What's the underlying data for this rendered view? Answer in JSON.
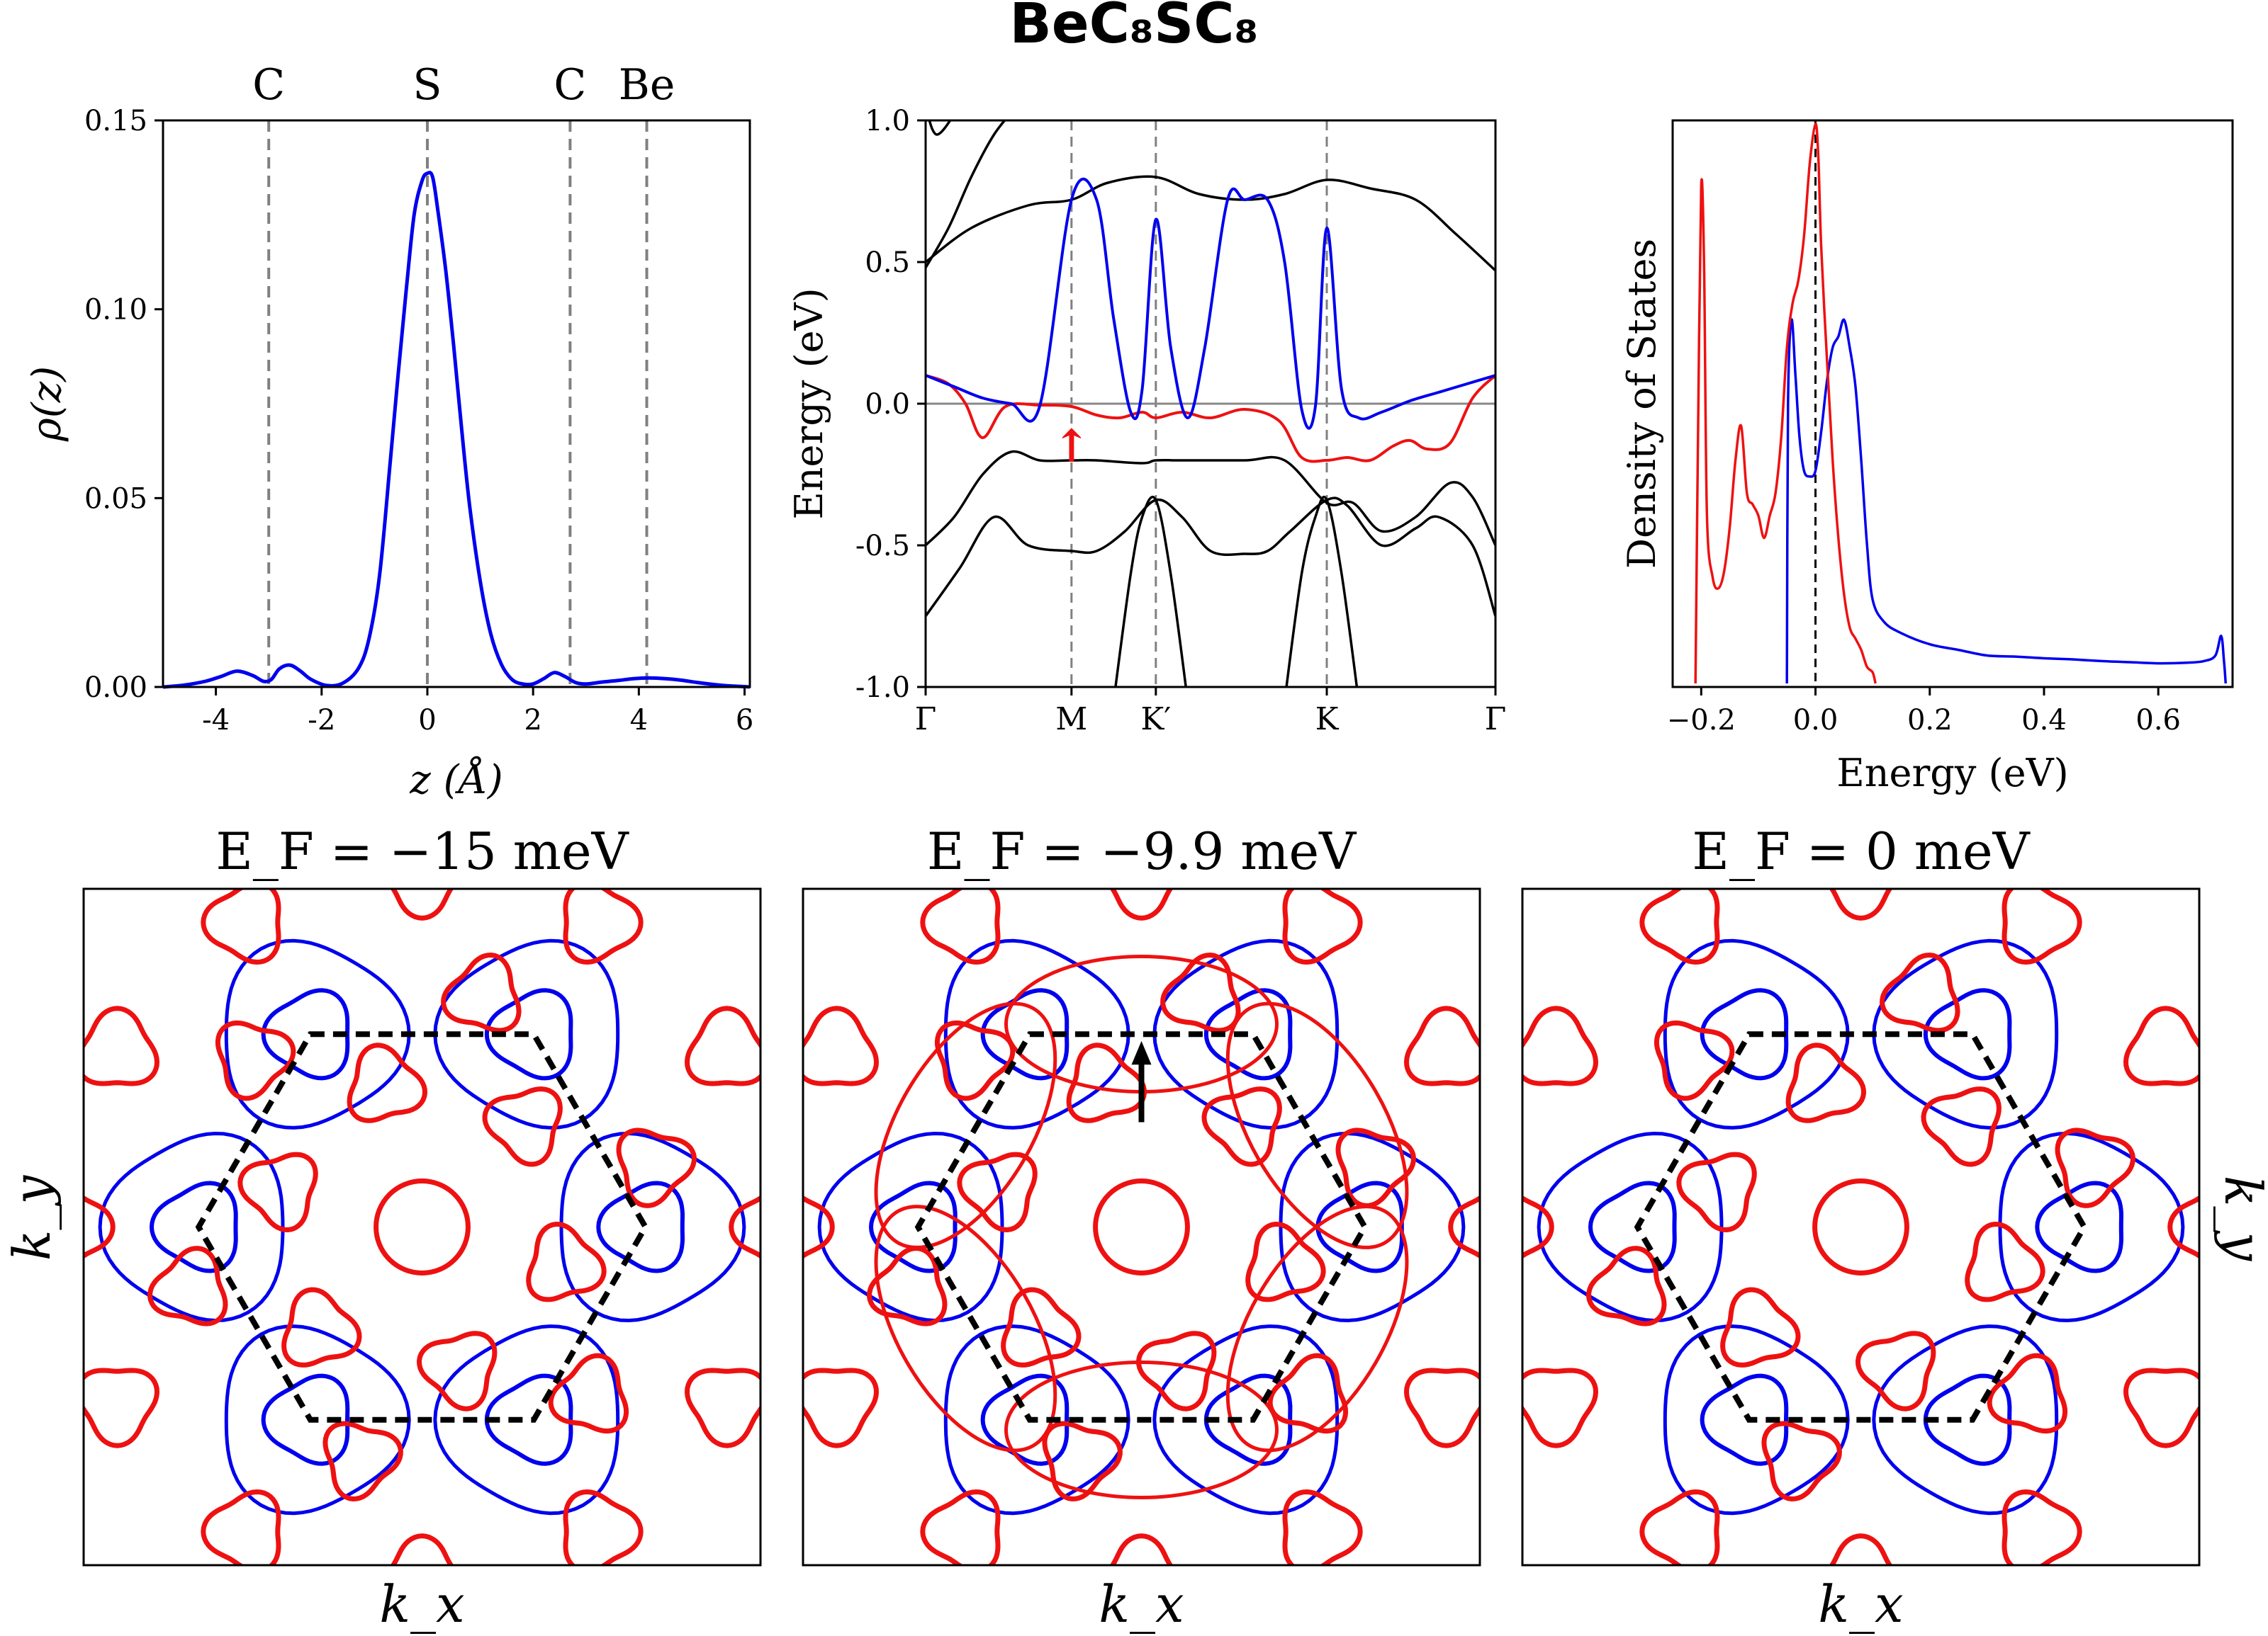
{
  "figure": {
    "title": "BeC₈SC₈"
  },
  "chart_data": [
    {
      "type": "line",
      "name": "charge-density-profile",
      "xlabel": "z (Å)",
      "ylabel": "ρ(z)",
      "xlim": [
        -5,
        6.1
      ],
      "ylim": [
        0,
        0.15
      ],
      "xticks": [
        -4,
        -2,
        0,
        2,
        4,
        6
      ],
      "xtick_labels": [
        "-4",
        "-2",
        "0",
        "2",
        "4",
        "6"
      ],
      "yticks": [
        0,
        0.05,
        0.1,
        0.15
      ],
      "ytick_labels": [
        "0.00",
        "0.05",
        "0.10",
        "0.15"
      ],
      "atoms": [
        {
          "label": "C",
          "z": -3.0
        },
        {
          "label": "S",
          "z": 0.0
        },
        {
          "label": "C",
          "z": 2.7
        },
        {
          "label": "Be",
          "z": 4.15
        }
      ],
      "series": [
        {
          "name": "rho",
          "color": "#0000ee",
          "x": [
            -5.0,
            -4.6,
            -4.2,
            -3.9,
            -3.6,
            -3.3,
            -3.1,
            -2.95,
            -2.8,
            -2.6,
            -2.4,
            -2.2,
            -1.9,
            -1.6,
            -1.3,
            -1.1,
            -0.9,
            -0.7,
            -0.55,
            -0.4,
            -0.25,
            -0.1,
            0.0,
            0.1,
            0.2,
            0.35,
            0.5,
            0.65,
            0.8,
            1.0,
            1.2,
            1.4,
            1.6,
            1.8,
            2.0,
            2.2,
            2.4,
            2.6,
            2.8,
            3.0,
            3.3,
            3.6,
            3.9,
            4.2,
            4.5,
            4.8,
            5.1,
            5.4,
            5.7,
            6.0,
            6.1
          ],
          "y": [
            0.0,
            0.0005,
            0.0015,
            0.0028,
            0.0042,
            0.003,
            0.0015,
            0.002,
            0.0048,
            0.0058,
            0.0042,
            0.002,
            0.0004,
            0.001,
            0.005,
            0.013,
            0.03,
            0.06,
            0.083,
            0.105,
            0.125,
            0.134,
            0.136,
            0.135,
            0.126,
            0.11,
            0.09,
            0.068,
            0.048,
            0.028,
            0.014,
            0.006,
            0.002,
            0.0008,
            0.0008,
            0.0022,
            0.0038,
            0.0028,
            0.0012,
            0.0008,
            0.0013,
            0.0017,
            0.0022,
            0.0024,
            0.0022,
            0.0018,
            0.0012,
            0.0007,
            0.0003,
            0.0001,
            0.0
          ]
        }
      ]
    },
    {
      "type": "line",
      "name": "band-structure",
      "xlabel": "",
      "ylabel": "Energy (eV)",
      "ylim": [
        -1.0,
        1.0
      ],
      "yticks": [
        -1.0,
        -0.5,
        0.0,
        0.5,
        1.0
      ],
      "ytick_labels": [
        "-1.0",
        "-0.5",
        "0.0",
        "0.5",
        "1.0"
      ],
      "kpoints": [
        {
          "label": "Γ",
          "x": 0.0
        },
        {
          "label": "M",
          "x": 0.256
        },
        {
          "label": "K′",
          "x": 0.404
        },
        {
          "label": "K",
          "x": 0.704
        },
        {
          "label": "Γ",
          "x": 1.0
        }
      ],
      "fermi_level": 0.0,
      "annotation": {
        "text": "↑",
        "color": "#ee1111",
        "k": 0.256,
        "energy": -0.15
      },
      "series": [
        {
          "name": "band-red",
          "color": "#ee1111",
          "x": [
            0.0,
            0.04,
            0.07,
            0.1,
            0.14,
            0.2,
            0.256,
            0.3,
            0.34,
            0.38,
            0.404,
            0.45,
            0.5,
            0.56,
            0.62,
            0.66,
            0.704,
            0.74,
            0.78,
            0.82,
            0.85,
            0.88,
            0.92,
            0.96,
            1.0
          ],
          "y": [
            0.1,
            0.07,
            0.0,
            -0.12,
            -0.01,
            -0.005,
            -0.01,
            -0.04,
            -0.05,
            -0.03,
            -0.05,
            -0.03,
            -0.05,
            -0.02,
            -0.06,
            -0.19,
            -0.2,
            -0.19,
            -0.2,
            -0.15,
            -0.13,
            -0.16,
            -0.14,
            0.02,
            0.1
          ]
        },
        {
          "name": "band-blue",
          "color": "#0000ee",
          "x": [
            0.0,
            0.05,
            0.1,
            0.15,
            0.2,
            0.256,
            0.3,
            0.33,
            0.36,
            0.38,
            0.404,
            0.43,
            0.46,
            0.49,
            0.53,
            0.56,
            0.6,
            0.63,
            0.66,
            0.684,
            0.704,
            0.73,
            0.76,
            0.8,
            0.85,
            0.9,
            0.95,
            1.0
          ],
          "y": [
            0.1,
            0.06,
            0.02,
            0.0,
            -0.01,
            0.72,
            0.72,
            0.3,
            -0.03,
            0.05,
            0.65,
            0.2,
            -0.05,
            0.2,
            0.72,
            0.72,
            0.72,
            0.5,
            -0.02,
            -0.01,
            0.62,
            0.05,
            -0.05,
            -0.03,
            0.01,
            0.04,
            0.07,
            0.1
          ]
        },
        {
          "name": "band-black-top-1",
          "color": "#000000",
          "x": [
            0.0,
            0.08,
            0.18,
            0.256,
            0.32,
            0.404,
            0.48,
            0.56,
            0.63,
            0.704,
            0.78,
            0.86,
            0.93,
            1.0
          ],
          "y": [
            0.5,
            0.62,
            0.7,
            0.72,
            0.78,
            0.8,
            0.74,
            0.72,
            0.74,
            0.79,
            0.76,
            0.72,
            0.6,
            0.47
          ]
        },
        {
          "name": "band-black-top-2",
          "color": "#000000",
          "x": [
            0.0,
            0.04,
            0.08,
            0.12,
            0.16
          ],
          "y": [
            0.48,
            0.62,
            0.8,
            0.95,
            1.05
          ]
        },
        {
          "name": "band-black-top-3",
          "color": "#000000",
          "x": [
            0.0,
            0.02,
            0.06,
            0.08
          ],
          "y": [
            1.05,
            0.95,
            1.05,
            1.1
          ]
        },
        {
          "name": "band-black-mid-1",
          "color": "#000000",
          "x": [
            0.0,
            0.05,
            0.1,
            0.15,
            0.2,
            0.256,
            0.3,
            0.38,
            0.404,
            0.45,
            0.56,
            0.63,
            0.704,
            0.75,
            0.8,
            0.86,
            0.92,
            0.96,
            1.0
          ],
          "y": [
            -0.5,
            -0.4,
            -0.25,
            -0.17,
            -0.2,
            -0.2,
            -0.2,
            -0.21,
            -0.2,
            -0.2,
            -0.2,
            -0.2,
            -0.35,
            -0.35,
            -0.45,
            -0.4,
            -0.28,
            -0.33,
            -0.5
          ]
        },
        {
          "name": "band-black-mid-2",
          "color": "#000000",
          "x": [
            0.0,
            0.06,
            0.12,
            0.18,
            0.256,
            0.3,
            0.35,
            0.404,
            0.45,
            0.5,
            0.56,
            0.6,
            0.64,
            0.704,
            0.74,
            0.8,
            0.86,
            0.9,
            0.96,
            1.0
          ],
          "y": [
            -0.75,
            -0.58,
            -0.4,
            -0.5,
            -0.52,
            -0.52,
            -0.45,
            -0.34,
            -0.4,
            -0.52,
            -0.53,
            -0.52,
            -0.45,
            -0.34,
            -0.36,
            -0.5,
            -0.44,
            -0.4,
            -0.5,
            -0.75
          ]
        },
        {
          "name": "band-black-low-1",
          "color": "#000000",
          "x": [
            0.33,
            0.36,
            0.38,
            0.404,
            0.43,
            0.46
          ],
          "y": [
            -1.05,
            -0.6,
            -0.4,
            -0.34,
            -0.6,
            -1.05
          ]
        },
        {
          "name": "band-black-low-2",
          "color": "#000000",
          "x": [
            0.63,
            0.66,
            0.684,
            0.704,
            0.73,
            0.76
          ],
          "y": [
            -1.05,
            -0.6,
            -0.4,
            -0.34,
            -0.6,
            -1.05
          ]
        }
      ]
    },
    {
      "type": "line",
      "name": "density-of-states",
      "xlabel": "Energy (eV)",
      "ylabel": "Density of States",
      "xlim": [
        -0.25,
        0.73
      ],
      "ylim": [
        0,
        1.0
      ],
      "xticks": [
        -0.2,
        0.0,
        0.2,
        0.4,
        0.6
      ],
      "xtick_labels": [
        "−0.2",
        "0.0",
        "0.2",
        "0.4",
        "0.6"
      ],
      "fermi_level": 0.0,
      "series": [
        {
          "name": "dos-red",
          "color": "#ee1111",
          "x": [
            -0.21,
            -0.205,
            -0.2,
            -0.195,
            -0.19,
            -0.18,
            -0.17,
            -0.16,
            -0.15,
            -0.14,
            -0.13,
            -0.12,
            -0.11,
            -0.1,
            -0.09,
            -0.08,
            -0.07,
            -0.06,
            -0.05,
            -0.04,
            -0.03,
            -0.02,
            -0.01,
            0.0,
            0.005,
            0.01,
            0.02,
            0.03,
            0.04,
            0.05,
            0.06,
            0.07,
            0.08,
            0.09,
            0.1,
            0.105
          ],
          "y": [
            0.0,
            0.5,
            0.89,
            0.75,
            0.3,
            0.19,
            0.17,
            0.2,
            0.28,
            0.4,
            0.46,
            0.34,
            0.32,
            0.3,
            0.26,
            0.3,
            0.34,
            0.44,
            0.6,
            0.68,
            0.72,
            0.8,
            0.93,
            1.0,
            0.94,
            0.78,
            0.58,
            0.4,
            0.26,
            0.16,
            0.1,
            0.08,
            0.06,
            0.03,
            0.02,
            0.0
          ]
        },
        {
          "name": "dos-blue",
          "color": "#0000ee",
          "x": [
            -0.05,
            -0.048,
            -0.042,
            -0.035,
            -0.028,
            -0.02,
            -0.01,
            0.0,
            0.01,
            0.02,
            0.03,
            0.04,
            0.05,
            0.06,
            0.07,
            0.08,
            0.09,
            0.1,
            0.12,
            0.15,
            0.2,
            0.25,
            0.3,
            0.35,
            0.4,
            0.45,
            0.5,
            0.55,
            0.6,
            0.65,
            0.68,
            0.7,
            0.71,
            0.715,
            0.718
          ],
          "y": [
            0.0,
            0.5,
            0.65,
            0.55,
            0.44,
            0.38,
            0.37,
            0.38,
            0.45,
            0.54,
            0.6,
            0.62,
            0.65,
            0.6,
            0.53,
            0.4,
            0.25,
            0.15,
            0.11,
            0.09,
            0.07,
            0.06,
            0.05,
            0.048,
            0.045,
            0.043,
            0.04,
            0.038,
            0.036,
            0.037,
            0.04,
            0.05,
            0.085,
            0.04,
            0.0
          ]
        }
      ]
    },
    {
      "type": "contour",
      "name": "fermi-surface",
      "panels": [
        {
          "title": "E_F = −15 meV",
          "arrow": false
        },
        {
          "title": "E_F = −9.9 meV",
          "arrow": true
        },
        {
          "title": "E_F = 0 meV",
          "arrow": false
        }
      ],
      "xlabel": "k_x",
      "ylabel": "k_y",
      "colors": {
        "electron": "#0000ee",
        "hole": "#ee1111",
        "zone": "#000000"
      }
    }
  ]
}
